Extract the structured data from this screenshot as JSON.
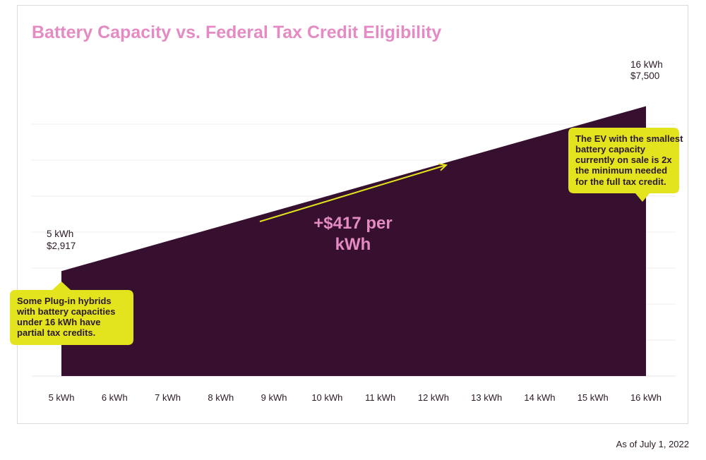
{
  "chart_data": {
    "type": "area",
    "title": "Battery Capacity vs. Federal Tax Credit Eligibility",
    "x": [
      5,
      16
    ],
    "categories": [
      "5 kWh",
      "6 kWh",
      "7 kWh",
      "8 kWh",
      "9 kWh",
      "10 kWh",
      "11 kWh",
      "12 kWh",
      "13 kWh",
      "14 kWh",
      "15 kWh",
      "16 kWh"
    ],
    "values": [
      2917,
      7500
    ],
    "ylim": [
      0,
      9000
    ],
    "grid": true,
    "fill_color": "#36102e",
    "title_color": "#e58bc3",
    "callout_color": "#e3e41e",
    "start_label": {
      "line1": "5 kWh",
      "line2": "$2,917"
    },
    "end_label": {
      "line1": "16 kWh",
      "line2": "$7,500"
    },
    "rate_annotation": [
      "+$417 per",
      "kWh"
    ],
    "callout_left": [
      "Some Plug-in hybrids",
      "with battery capacities",
      "under 16 kWh have",
      "partial tax credits."
    ],
    "callout_right": [
      "The EV with the smallest",
      "battery capacity",
      "currently on sale is 2x",
      "the minimum needed",
      "for the full tax credit."
    ]
  },
  "footnote": "As of July 1, 2022"
}
